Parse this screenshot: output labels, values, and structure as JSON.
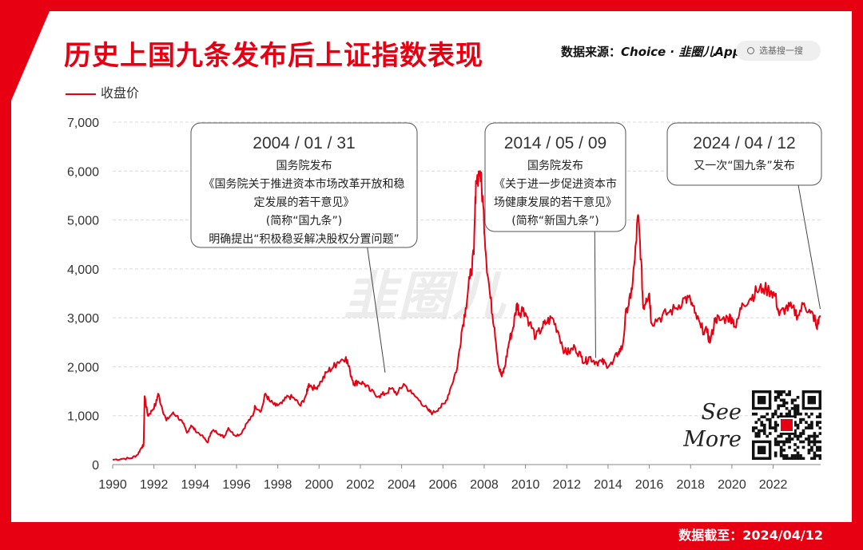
{
  "title": "历史上国九条发布后上证指数表现",
  "source": {
    "label": "数据来源：",
    "value": "Choice · 韭圈儿App"
  },
  "search": {
    "placeholder": "选基搜一搜"
  },
  "legend": {
    "label": "收盘价"
  },
  "watermark": "韭圈儿",
  "see_more": [
    "See",
    "More"
  ],
  "footer": "数据截至：2024/04/12",
  "colors": {
    "accent": "#e60012",
    "line": "#e60012"
  },
  "chart_data": {
    "type": "line",
    "title": "历史上国九条发布后上证指数表现",
    "xlabel": "",
    "ylabel": "",
    "ylim": [
      0,
      7000
    ],
    "xlim": [
      1990,
      2024.3
    ],
    "y_ticks": [
      "0",
      "1,000",
      "2,000",
      "3,000",
      "4,000",
      "5,000",
      "6,000",
      "7,000"
    ],
    "x_ticks": [
      "1990",
      "1992",
      "1994",
      "1996",
      "1998",
      "2000",
      "2002",
      "2004",
      "2006",
      "2008",
      "2010",
      "2012",
      "2014",
      "2016",
      "2018",
      "2020",
      "2022"
    ],
    "grid": true,
    "series": [
      {
        "name": "收盘价",
        "x": [
          1990.0,
          1990.5,
          1990.9,
          1991.2,
          1991.4,
          1991.5,
          1991.55,
          1991.7,
          1991.9,
          1992.1,
          1992.2,
          1992.4,
          1992.6,
          1992.9,
          1993.1,
          1993.4,
          1993.6,
          1993.8,
          1994.0,
          1994.3,
          1994.6,
          1994.75,
          1994.9,
          1995.2,
          1995.4,
          1995.6,
          1995.9,
          1996.2,
          1996.5,
          1996.8,
          1996.9,
          1997.2,
          1997.4,
          1997.6,
          1997.9,
          1998.2,
          1998.5,
          1998.8,
          1999.1,
          1999.4,
          1999.5,
          1999.8,
          2000.1,
          2000.4,
          2000.7,
          2000.9,
          2001.3,
          2001.5,
          2001.7,
          2001.9,
          2002.2,
          2002.5,
          2002.9,
          2003.2,
          2003.5,
          2003.8,
          2004.1,
          2004.5,
          2004.9,
          2005.3,
          2005.5,
          2005.8,
          2006.1,
          2006.4,
          2006.7,
          2006.9,
          2007.1,
          2007.3,
          2007.5,
          2007.6,
          2007.8,
          2007.95,
          2008.1,
          2008.3,
          2008.5,
          2008.7,
          2008.85,
          2009.0,
          2009.2,
          2009.4,
          2009.6,
          2009.7,
          2009.9,
          2010.2,
          2010.5,
          2010.8,
          2011.0,
          2011.3,
          2011.6,
          2011.9,
          2012.1,
          2012.4,
          2012.7,
          2012.9,
          2013.1,
          2013.4,
          2013.7,
          2013.9,
          2014.2,
          2014.5,
          2014.7,
          2014.9,
          2015.1,
          2015.3,
          2015.45,
          2015.6,
          2015.7,
          2015.85,
          2016.0,
          2016.1,
          2016.5,
          2016.9,
          2017.3,
          2017.7,
          2018.0,
          2018.2,
          2018.5,
          2018.8,
          2018.95,
          2019.2,
          2019.4,
          2019.8,
          2020.0,
          2020.2,
          2020.5,
          2020.9,
          2021.2,
          2021.5,
          2021.9,
          2022.1,
          2022.3,
          2022.6,
          2022.9,
          2023.2,
          2023.5,
          2023.8,
          2024.0,
          2024.1,
          2024.28
        ],
        "values": [
          100,
          120,
          130,
          200,
          350,
          400,
          1400,
          1000,
          1100,
          1250,
          1450,
          1150,
          900,
          1050,
          1000,
          850,
          650,
          800,
          700,
          600,
          450,
          650,
          700,
          620,
          560,
          750,
          600,
          620,
          850,
          1000,
          1200,
          1100,
          1450,
          1300,
          1200,
          1250,
          1400,
          1350,
          1200,
          1450,
          1650,
          1550,
          1700,
          1900,
          2000,
          2100,
          2200,
          1900,
          1650,
          1700,
          1650,
          1500,
          1400,
          1450,
          1550,
          1450,
          1650,
          1450,
          1300,
          1100,
          1050,
          1150,
          1250,
          1600,
          2000,
          2700,
          3200,
          3800,
          4300,
          5800,
          6000,
          5300,
          4200,
          3400,
          2800,
          2000,
          1800,
          2000,
          2500,
          2800,
          3300,
          3100,
          3200,
          2900,
          2600,
          2800,
          2900,
          3000,
          2700,
          2300,
          2300,
          2400,
          2200,
          2100,
          2200,
          2100,
          2100,
          2050,
          2050,
          2300,
          2400,
          3200,
          3400,
          4200,
          5100,
          4200,
          3200,
          3400,
          3500,
          2900,
          3000,
          3100,
          3200,
          3400,
          3350,
          3100,
          2800,
          2700,
          2500,
          3000,
          2950,
          3000,
          3000,
          2800,
          3300,
          3400,
          3550,
          3600,
          3550,
          3450,
          3050,
          3200,
          3200,
          3050,
          3300,
          3100,
          3000,
          2800,
          3050
        ]
      }
    ],
    "annotations": [
      {
        "date": "2004 / 01 / 31",
        "lines": [
          "国务院发布",
          "《国务院关于推进资本市场改革开放和稳",
          "定发展的若干意见》",
          "(简称“国九条”)",
          "明确提出“积极稳妥解决股权分置问题”"
        ],
        "x": 2003.2,
        "y": 1750
      },
      {
        "date": "2014 / 05 / 09",
        "lines": [
          "国务院发布",
          "《关于进一步促进资本市",
          "场健康发展的若干意见》",
          "(简称“新国九条”)"
        ],
        "x": 2013.4,
        "y": 2050
      },
      {
        "date": "2024 / 04 / 12",
        "lines": [
          "又一次“国九条”发布"
        ],
        "x": 2024.28,
        "y": 3050
      }
    ]
  }
}
